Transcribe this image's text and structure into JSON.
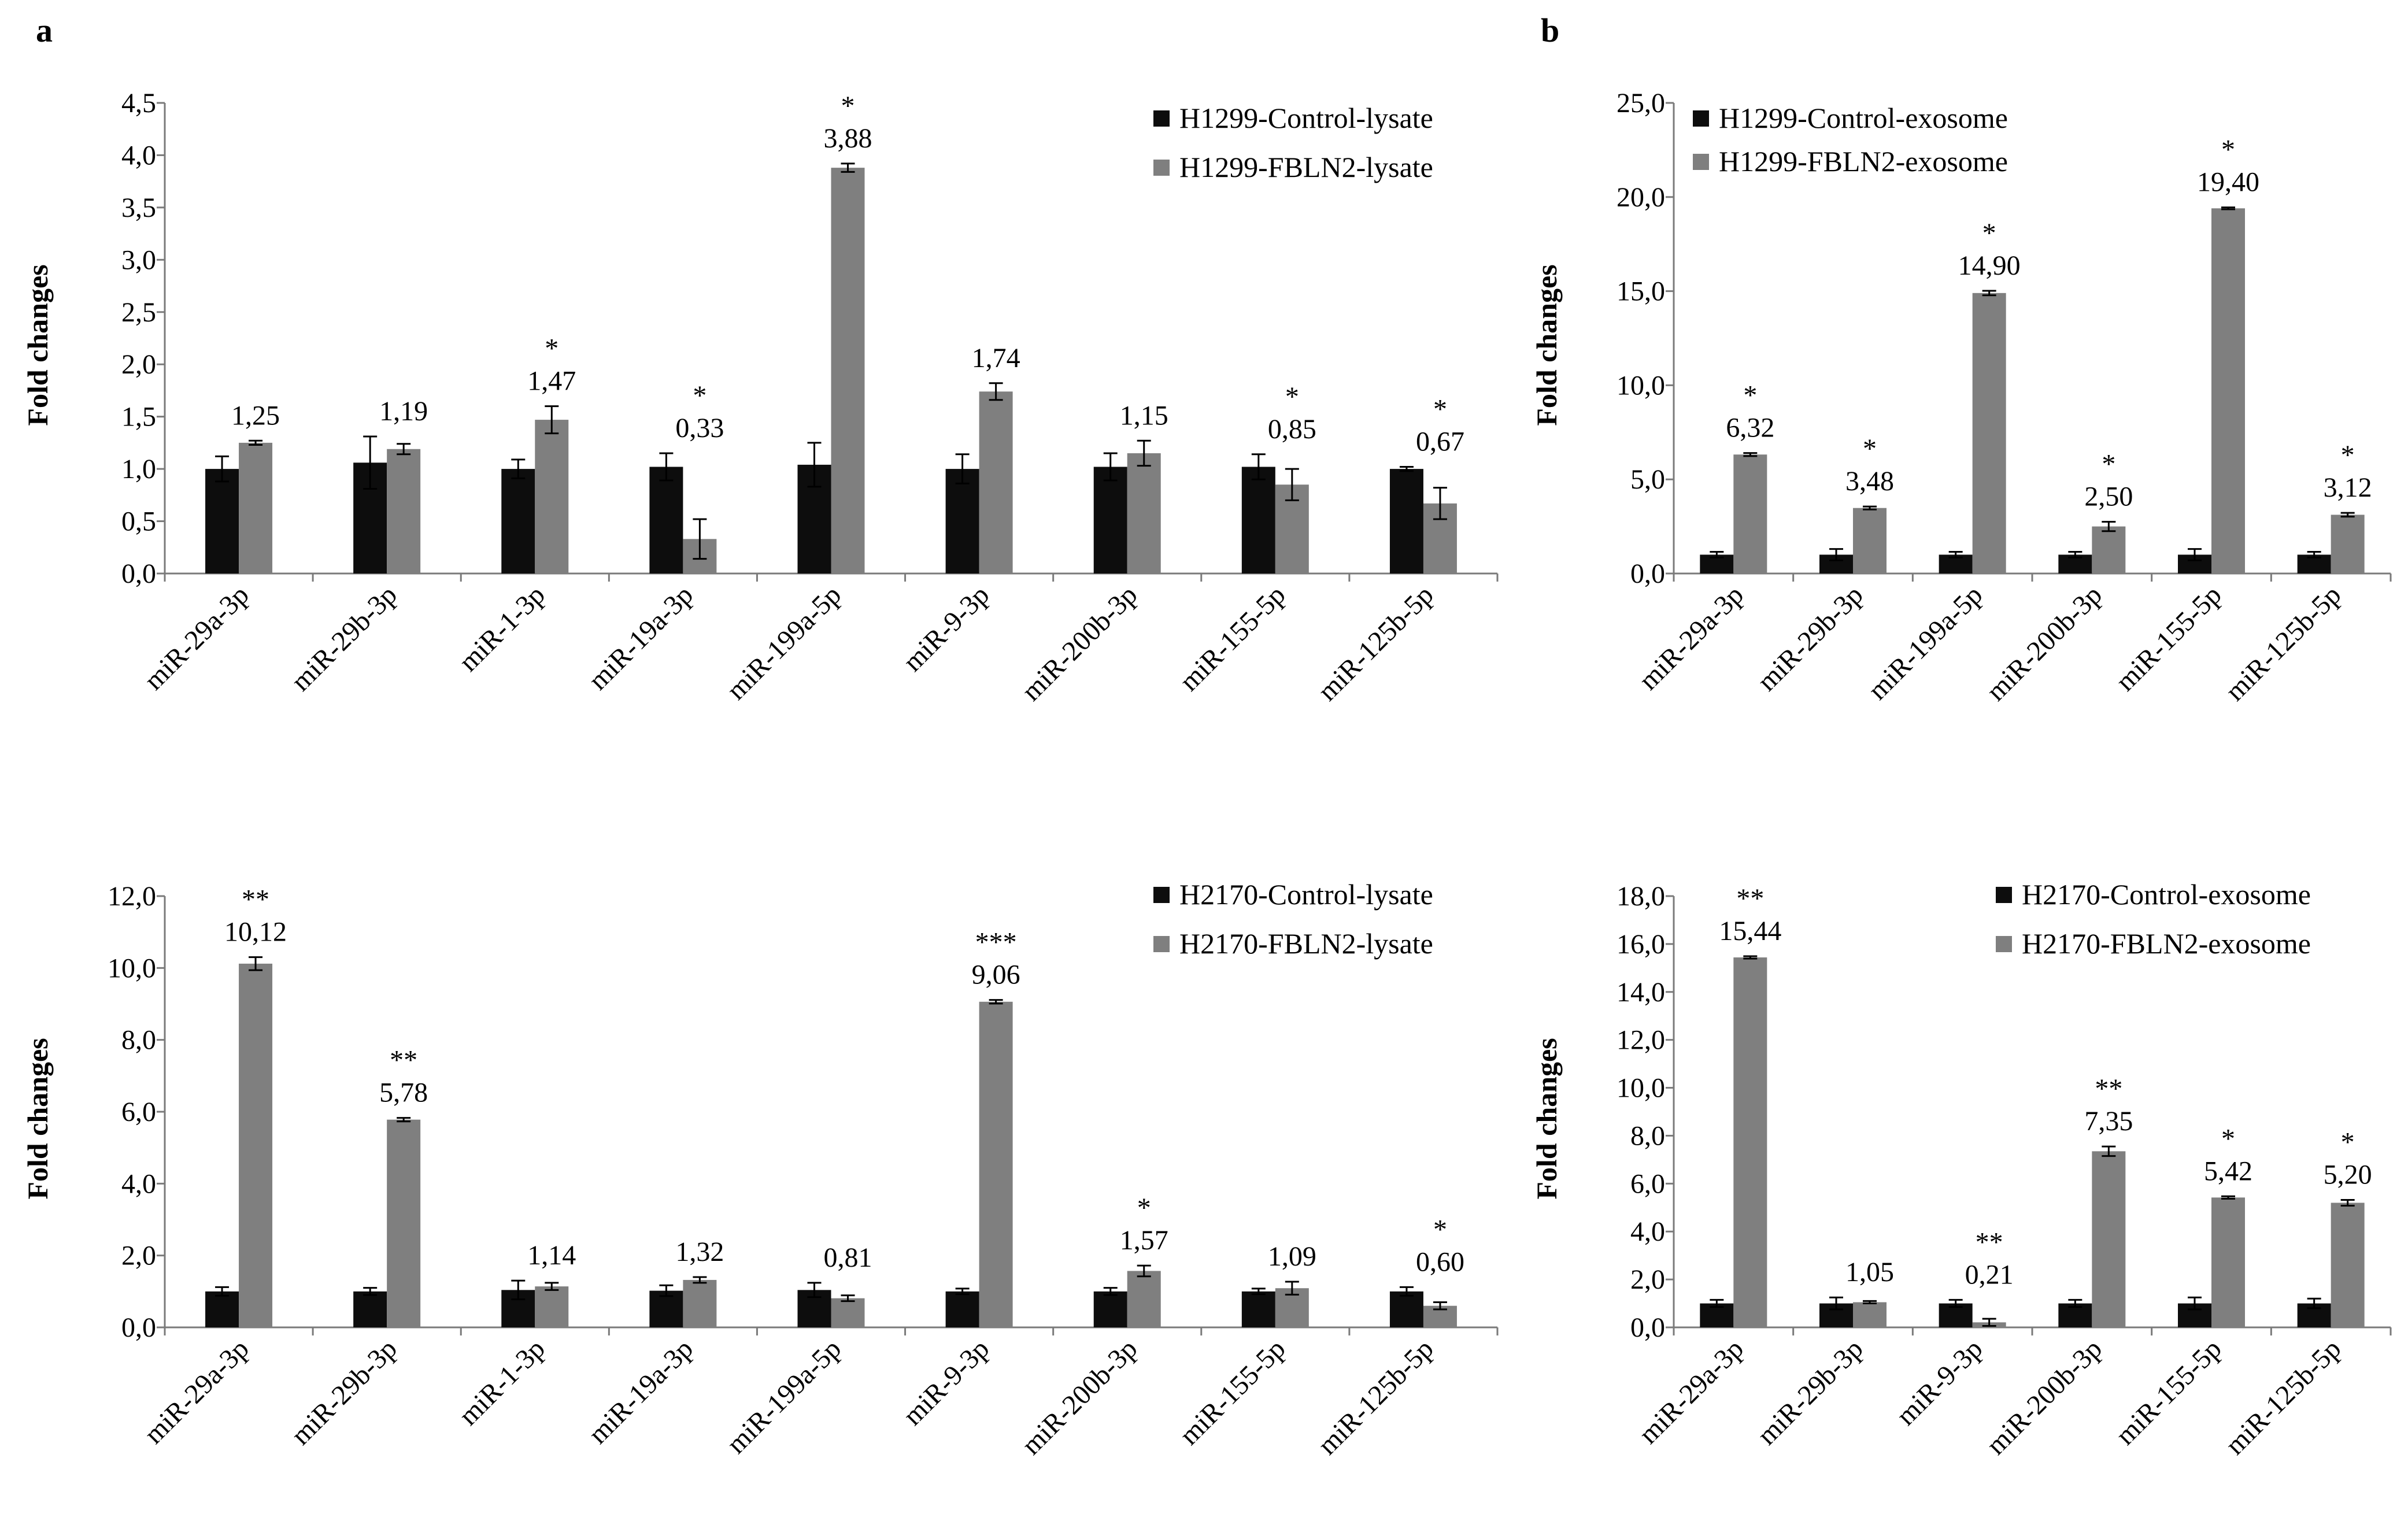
{
  "panels": {
    "a": "a",
    "b": "b"
  },
  "colors": {
    "control": "#0d0d0d",
    "fbln2": "#7f7f7f",
    "axis": "#7a7a7a",
    "error": "#000000"
  },
  "chart_data": [
    {
      "type": "bar",
      "panel": "a",
      "ylabel": "Fold changes",
      "ylim": [
        0,
        4.5
      ],
      "ytick_step": 0.5,
      "ytick_decimals": 1,
      "legend_position": "top-right",
      "categories": [
        "miR-29a-3p",
        "miR-29b-3p",
        "miR-1-3p",
        "miR-19a-3p",
        "miR-199a-5p",
        "miR-9-3p",
        "miR-200b-3p",
        "miR-155-5p",
        "miR-125b-5p"
      ],
      "series": [
        {
          "name": "H1299-Control-lysate",
          "values": [
            1.0,
            1.06,
            1.0,
            1.02,
            1.04,
            1.0,
            1.02,
            1.02,
            1.0
          ],
          "errors": [
            0.12,
            0.25,
            0.09,
            0.13,
            0.21,
            0.14,
            0.13,
            0.12,
            0.02
          ]
        },
        {
          "name": "H1299-FBLN2-lysate",
          "values": [
            1.25,
            1.19,
            1.47,
            0.33,
            3.88,
            1.74,
            1.15,
            0.85,
            0.67
          ],
          "errors": [
            0.02,
            0.05,
            0.13,
            0.19,
            0.04,
            0.08,
            0.12,
            0.15,
            0.15
          ]
        }
      ],
      "data_labels": [
        "1,25",
        "1,19",
        "1,47",
        "0,33",
        "3,88",
        "1,74",
        "1,15",
        "0,85",
        "0,67"
      ],
      "significance": [
        "",
        "",
        "*",
        "*",
        "*",
        "",
        "",
        "*",
        "*"
      ]
    },
    {
      "type": "bar",
      "panel": "b",
      "ylabel": "Fold changes",
      "ylim": [
        0,
        25
      ],
      "ytick_step": 5,
      "ytick_decimals": 1,
      "legend_position": "top-left",
      "categories": [
        "miR-29a-3p",
        "miR-29b-3p",
        "miR-199a-5p",
        "miR-200b-3p",
        "miR-155-5p",
        "miR-125b-5p"
      ],
      "series": [
        {
          "name": "H1299-Control-exosome",
          "values": [
            1.0,
            1.0,
            1.0,
            1.0,
            1.0,
            1.0
          ],
          "errors": [
            0.15,
            0.3,
            0.15,
            0.15,
            0.3,
            0.15
          ]
        },
        {
          "name": "H1299-FBLN2-exosome",
          "values": [
            6.32,
            3.48,
            14.9,
            2.5,
            19.4,
            3.12
          ],
          "errors": [
            0.08,
            0.08,
            0.12,
            0.25,
            0.05,
            0.1
          ]
        }
      ],
      "data_labels": [
        "6,32",
        "3,48",
        "14,90",
        "2,50",
        "19,40",
        "3,12"
      ],
      "significance": [
        "*",
        "*",
        "*",
        "*",
        "*",
        "*"
      ]
    },
    {
      "type": "bar",
      "panel": "a",
      "ylabel": "Fold changes",
      "ylim": [
        0,
        12
      ],
      "ytick_step": 2,
      "ytick_decimals": 1,
      "legend_position": "top-right",
      "categories": [
        "miR-29a-3p",
        "miR-29b-3p",
        "miR-1-3p",
        "miR-19a-3p",
        "miR-199a-5p",
        "miR-9-3p",
        "miR-200b-3p",
        "miR-155-5p",
        "miR-125b-5p"
      ],
      "series": [
        {
          "name": "H2170-Control-lysate",
          "values": [
            1.0,
            1.0,
            1.04,
            1.02,
            1.04,
            1.0,
            1.0,
            1.0,
            1.0
          ],
          "errors": [
            0.12,
            0.1,
            0.26,
            0.15,
            0.2,
            0.08,
            0.1,
            0.08,
            0.12
          ]
        },
        {
          "name": "H2170-FBLN2-lysate",
          "values": [
            10.12,
            5.78,
            1.14,
            1.32,
            0.81,
            9.06,
            1.57,
            1.09,
            0.6
          ],
          "errors": [
            0.18,
            0.05,
            0.1,
            0.08,
            0.08,
            0.05,
            0.15,
            0.18,
            0.1
          ]
        }
      ],
      "data_labels": [
        "10,12",
        "5,78",
        "1,14",
        "1,32",
        "0,81",
        "9,06",
        "1,57",
        "1,09",
        "0,60"
      ],
      "significance": [
        "**",
        "**",
        "",
        "",
        "",
        "***",
        "*",
        "",
        "*"
      ]
    },
    {
      "type": "bar",
      "panel": "b",
      "ylabel": "Fold changes",
      "ylim": [
        0,
        18
      ],
      "ytick_step": 2,
      "ytick_decimals": 1,
      "legend_position": "top-right",
      "categories": [
        "miR-29a-3p",
        "miR-29b-3p",
        "miR-9-3p",
        "miR-200b-3p",
        "miR-155-5p",
        "miR-125b-5p"
      ],
      "series": [
        {
          "name": "H2170-Control-exosome",
          "values": [
            1.0,
            1.0,
            1.0,
            1.0,
            1.0,
            1.0
          ],
          "errors": [
            0.15,
            0.25,
            0.15,
            0.15,
            0.25,
            0.2
          ]
        },
        {
          "name": "H2170-FBLN2-exosome",
          "values": [
            15.44,
            1.05,
            0.21,
            7.35,
            5.42,
            5.2
          ],
          "errors": [
            0.05,
            0.05,
            0.15,
            0.2,
            0.05,
            0.12
          ]
        }
      ],
      "data_labels": [
        "15,44",
        "1,05",
        "0,21",
        "7,35",
        "5,42",
        "5,20"
      ],
      "significance": [
        "**",
        "",
        "**",
        "**",
        "*",
        "*"
      ]
    }
  ]
}
